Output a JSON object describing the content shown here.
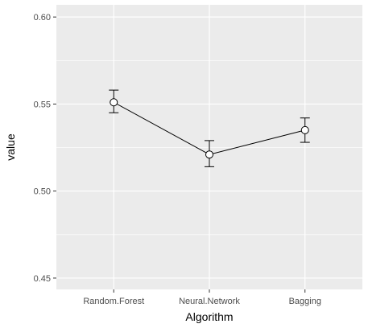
{
  "chart_data": {
    "type": "line",
    "xlabel": "Algorithm",
    "ylabel": "value",
    "categories": [
      "Random.Forest",
      "Neural.Network",
      "Bagging"
    ],
    "values": [
      0.551,
      0.521,
      0.535
    ],
    "error_lower": [
      0.545,
      0.514,
      0.528
    ],
    "error_upper": [
      0.558,
      0.529,
      0.542
    ],
    "ylim": [
      0.4435,
      0.607
    ],
    "y_ticks": [
      0.45,
      0.5,
      0.55,
      0.6
    ],
    "y_tick_labels": [
      "0.45",
      "0.50",
      "0.55",
      "0.60"
    ],
    "grid": true,
    "colors": {
      "panel_background": "#ebebeb",
      "grid_major": "#ffffff",
      "line": "#000000",
      "point_fill": "#ffffff",
      "point_stroke": "#000000"
    }
  }
}
